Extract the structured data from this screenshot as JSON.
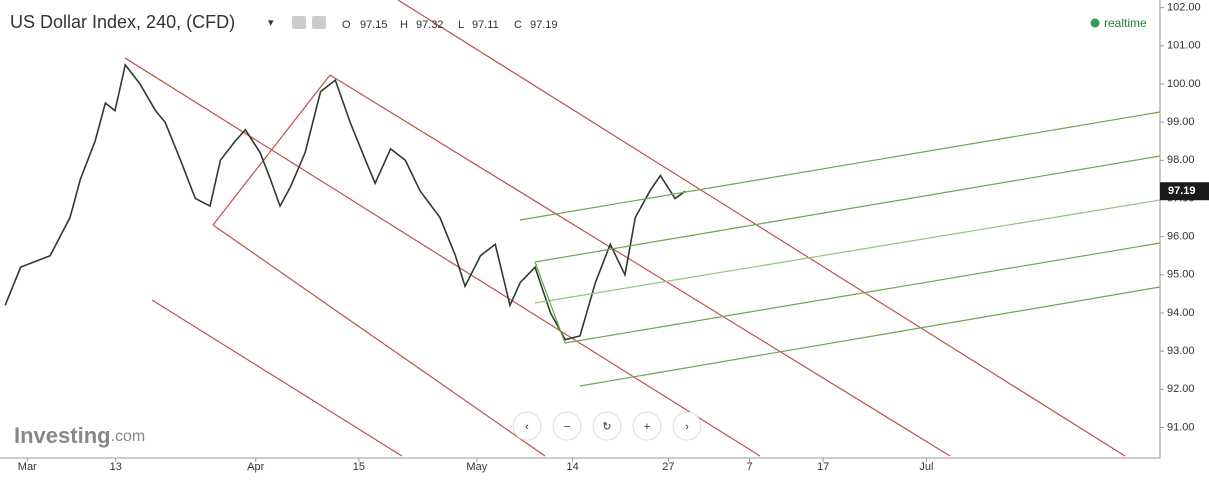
{
  "chart_data": {
    "type": "line",
    "title": "US Dollar Index, 240, (CFD)",
    "ohlc": {
      "o_label": "O",
      "open": 97.15,
      "h_label": "H",
      "high": 97.32,
      "l_label": "L",
      "low": 97.11,
      "c_label": "C",
      "close": 97.19
    },
    "status": "realtime",
    "brand": "Investing",
    "brand_suffix": ".com",
    "x": [
      -3.0,
      -0.9,
      3.1,
      5.8,
      7.2,
      9.2,
      10.6,
      11.9,
      13.3,
      15.3,
      17.4,
      18.7,
      20.8,
      22.8,
      24.8,
      26.2,
      28.2,
      29.6,
      31.6,
      33.0,
      34.3,
      35.7,
      37.7,
      39.8,
      41.8,
      43.8,
      45.9,
      47.2,
      49.3,
      51.3,
      53.3,
      56.0,
      58.1,
      59.4,
      61.5,
      63.5,
      65.5,
      66.9,
      68.9,
      71.0,
      73.0,
      75.0,
      77.1,
      79.1,
      81.1,
      82.5,
      84.5,
      85.9,
      87.9,
      89.3
    ],
    "series": [
      {
        "color": "#2e3b2e",
        "values": [
          94.2,
          95.2,
          95.5,
          96.5,
          97.5,
          98.5,
          99.5,
          99.3,
          100.5,
          100.0,
          99.3,
          99.0,
          98.0,
          97.0,
          96.8,
          98.0,
          98.5,
          98.8,
          98.2,
          97.5,
          96.8,
          97.3,
          98.2,
          99.8,
          100.1,
          99.0,
          98.0,
          97.4,
          98.3,
          98.0,
          97.2,
          96.5,
          95.5,
          94.7,
          95.5,
          95.8,
          94.2,
          94.8,
          95.2,
          94.0,
          93.3,
          93.4,
          94.8,
          95.8,
          95.0,
          96.5,
          97.2,
          97.6,
          97.0,
          97.19
        ]
      }
    ],
    "xlim": [
      -3.7,
      153.7
    ],
    "xticks": [
      {
        "value": 0,
        "label": "Mar"
      },
      {
        "value": 12,
        "label": "13"
      },
      {
        "value": 31,
        "label": "Apr"
      },
      {
        "value": 45,
        "label": "15"
      },
      {
        "value": 61,
        "label": "May"
      },
      {
        "value": 74,
        "label": "14"
      },
      {
        "value": 87,
        "label": "27"
      },
      {
        "value": 98,
        "label": "7"
      },
      {
        "value": 108,
        "label": "17"
      },
      {
        "value": 122,
        "label": "Jul"
      }
    ],
    "ylim": [
      90.2,
      102.2
    ],
    "yticks": [
      {
        "value": 91,
        "label": "91.00"
      },
      {
        "value": 92,
        "label": "92.00"
      },
      {
        "value": 93,
        "label": "93.00"
      },
      {
        "value": 94,
        "label": "94.00"
      },
      {
        "value": 95,
        "label": "95.00"
      },
      {
        "value": 96,
        "label": "96.00"
      },
      {
        "value": 97,
        "label": "97.00"
      },
      {
        "value": 98,
        "label": "98.00"
      },
      {
        "value": 99,
        "label": "99.00"
      },
      {
        "value": 100,
        "label": "100.00"
      },
      {
        "value": 101,
        "label": "101.00"
      },
      {
        "value": 102,
        "label": "102.00"
      }
    ]
  }
}
